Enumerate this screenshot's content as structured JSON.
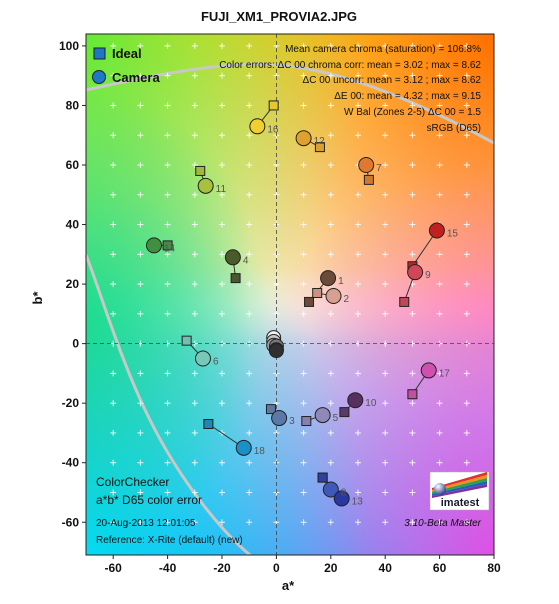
{
  "chart_data": {
    "type": "scatter",
    "title": "FUJI_XM1_PROVIA2.JPG",
    "xlabel": "a*",
    "ylabel": "b*",
    "xlim": [
      -70,
      80
    ],
    "ylim": [
      -71,
      104
    ],
    "xticks": [
      -60,
      -40,
      -20,
      0,
      20,
      40,
      60,
      80
    ],
    "yticks": [
      100,
      80,
      60,
      40,
      20,
      0,
      -20,
      -40,
      -60
    ],
    "grid": "crosses",
    "legend": {
      "placement": "top-left",
      "entries": [
        {
          "name": "Ideal",
          "marker": "square",
          "color": "#1e78c8"
        },
        {
          "name": "Camera",
          "marker": "circle",
          "color": "#1e78c8"
        }
      ]
    },
    "annotations_top_right": [
      "Mean camera chroma (saturation) = 106.8%",
      "Color errors: ΔC 00 chroma corr:  mean = 3.02 ;  max = 8.62",
      "ΔC 00 uncorr:  mean = 3.12 ;  max = 8.62",
      "ΔE 00:  mean = 4.32 ;  max = 9.15",
      "W Bal (Zones 2-5) ΔC 00 = 1.5",
      "sRGB (D65)"
    ],
    "annotations_bottom_left": [
      "ColorChecker",
      "a*b* D65 color error",
      "20-Aug-2013 12:01:05",
      "Reference: X-Rite (default) (new)"
    ],
    "annotation_bottom_right": "3.10-Beta  Master",
    "logo_text": "imatest",
    "series": [
      {
        "name": "Ideal",
        "points": [
          {
            "id": "1",
            "a": 12,
            "b": 14,
            "color": "#6b4a3a"
          },
          {
            "id": "2",
            "a": 15,
            "b": 17,
            "color": "#c89480"
          },
          {
            "id": "3",
            "a": -2,
            "b": -22,
            "color": "#5e78a0"
          },
          {
            "id": "4",
            "a": -15,
            "b": 22,
            "color": "#4a5a30"
          },
          {
            "id": "5",
            "a": 11,
            "b": -26,
            "color": "#8880b0"
          },
          {
            "id": "6",
            "a": -33,
            "b": 1,
            "color": "#70c0b0"
          },
          {
            "id": "7",
            "a": 34,
            "b": 55,
            "color": "#d07830"
          },
          {
            "id": "8",
            "a": 17,
            "b": -45,
            "color": "#4860a8"
          },
          {
            "id": "9",
            "a": 47,
            "b": 14,
            "color": "#c04858"
          },
          {
            "id": "10",
            "a": 25,
            "b": -23,
            "color": "#5a3a68"
          },
          {
            "id": "11",
            "a": -28,
            "b": 58,
            "color": "#a0b840"
          },
          {
            "id": "12",
            "a": 16,
            "b": 66,
            "color": "#d8a030"
          },
          {
            "id": "13",
            "a": 17,
            "b": -45,
            "color": "#3040a0"
          },
          {
            "id": "14",
            "a": -40,
            "b": 33,
            "color": "#488848"
          },
          {
            "id": "15",
            "a": 50,
            "b": 26,
            "color": "#b02828"
          },
          {
            "id": "16",
            "a": -1,
            "b": 80,
            "color": "#e8c830"
          },
          {
            "id": "17",
            "a": 50,
            "b": -17,
            "color": "#c050a0"
          },
          {
            "id": "18",
            "a": -25,
            "b": -27,
            "color": "#2088b0"
          }
        ]
      },
      {
        "name": "Camera",
        "points": [
          {
            "id": "1",
            "a": 19,
            "b": 22,
            "color": "#6b4a3a"
          },
          {
            "id": "2",
            "a": 21,
            "b": 16,
            "color": "#d8a090"
          },
          {
            "id": "3",
            "a": 1,
            "b": -25,
            "color": "#5a78a8"
          },
          {
            "id": "4",
            "a": -16,
            "b": 29,
            "color": "#4a5a28"
          },
          {
            "id": "5",
            "a": 17,
            "b": -24,
            "color": "#9088b8"
          },
          {
            "id": "6",
            "a": -27,
            "b": -5,
            "color": "#78c8b8"
          },
          {
            "id": "7",
            "a": 33,
            "b": 60,
            "color": "#e07830"
          },
          {
            "id": "8",
            "a": 20,
            "b": -49,
            "color": "#4058b8"
          },
          {
            "id": "9",
            "a": 51,
            "b": 24,
            "color": "#d04858"
          },
          {
            "id": "10",
            "a": 29,
            "b": -19,
            "color": "#583060"
          },
          {
            "id": "11",
            "a": -26,
            "b": 53,
            "color": "#a8c040"
          },
          {
            "id": "12",
            "a": 10,
            "b": 69,
            "color": "#e0a030"
          },
          {
            "id": "13",
            "a": 24,
            "b": -52,
            "color": "#2838a0"
          },
          {
            "id": "14",
            "a": -45,
            "b": 33,
            "color": "#409040"
          },
          {
            "id": "15",
            "a": 59,
            "b": 38,
            "color": "#c02020"
          },
          {
            "id": "16",
            "a": -7,
            "b": 73,
            "color": "#f0d030"
          },
          {
            "id": "17",
            "a": 56,
            "b": -9,
            "color": "#d050b0"
          },
          {
            "id": "18",
            "a": -12,
            "b": -35,
            "color": "#1890c8"
          }
        ]
      },
      {
        "name": "neutral",
        "points": [
          {
            "a": -1,
            "b": 2,
            "color": "#f2f2f2"
          },
          {
            "a": -1,
            "b": 1,
            "color": "#c8c8c8"
          },
          {
            "a": -1,
            "b": 0,
            "color": "#a0a0a0"
          },
          {
            "a": 0,
            "b": 0,
            "color": "#787878"
          },
          {
            "a": 0,
            "b": -1,
            "color": "#505050"
          },
          {
            "a": 0,
            "b": -1,
            "color": "#303030"
          }
        ]
      }
    ]
  }
}
